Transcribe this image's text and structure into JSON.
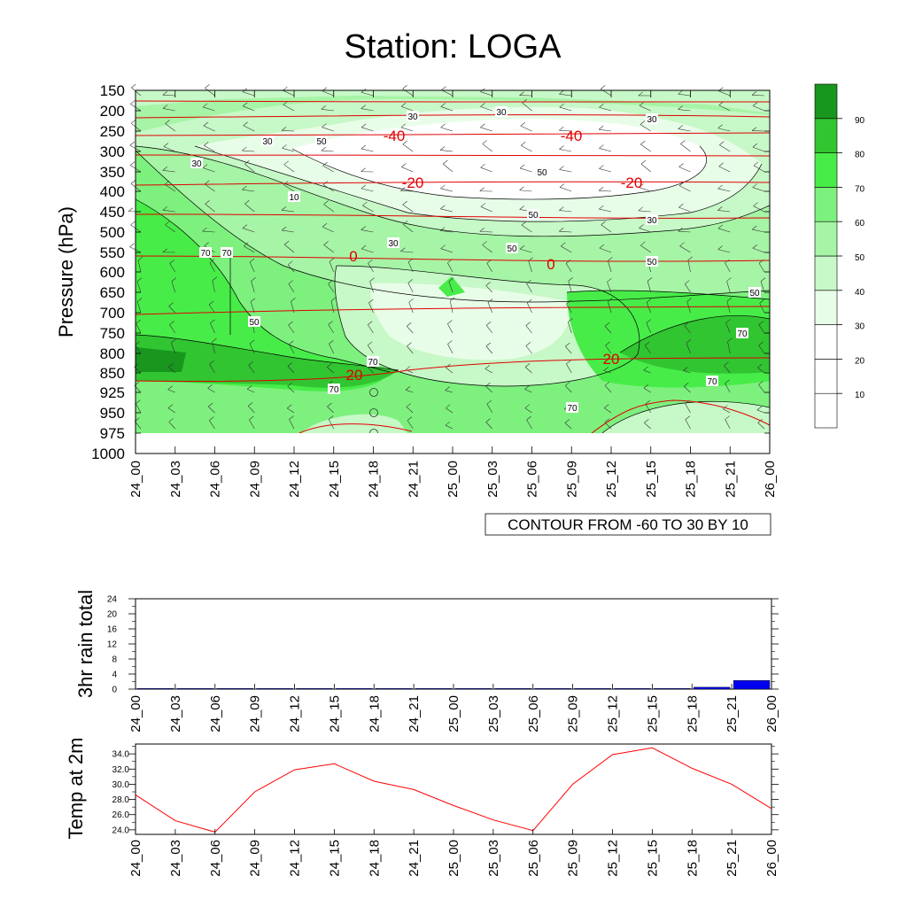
{
  "title": "Station: LOGA",
  "contour_info": "CONTOUR FROM -60 TO 30 BY 10",
  "chart_data": [
    {
      "type": "heatmap",
      "ylabel": "Pressure (hPa)",
      "x_ticks": [
        "24_00",
        "24_03",
        "24_06",
        "24_09",
        "24_12",
        "24_15",
        "24_18",
        "24_21",
        "25_00",
        "25_03",
        "25_06",
        "25_09",
        "25_12",
        "25_15",
        "25_18",
        "25_21",
        "26_00"
      ],
      "y_ticks": [
        "150",
        "200",
        "250",
        "300",
        "350",
        "400",
        "450",
        "500",
        "550",
        "600",
        "650",
        "700",
        "750",
        "800",
        "850",
        "925",
        "950",
        "975",
        "1000"
      ],
      "colorbar_labels": [
        "10",
        "20",
        "30",
        "40",
        "50",
        "60",
        "70",
        "80",
        "90"
      ],
      "colorbar_colors": [
        "#ffffff",
        "#ffffff",
        "#ffffff",
        "#e8fde8",
        "#c7f8c7",
        "#a6f4a6",
        "#7ef07e",
        "#48ec48",
        "#31c531",
        "#18961e"
      ],
      "humidity_contour_labels": [
        "30",
        "30",
        "30",
        "30",
        "50",
        "30",
        "50",
        "10",
        "50",
        "30",
        "30",
        "50",
        "70",
        "50",
        "50",
        "50",
        "70",
        "70",
        "70",
        "70",
        "70",
        "70"
      ],
      "temperature_contour_labels": [
        "-40",
        "-40",
        "-20",
        "-20",
        "0",
        "0",
        "20",
        "20"
      ]
    },
    {
      "type": "bar",
      "ylabel": "3hr rain total",
      "x_ticks": [
        "24_00",
        "24_03",
        "24_06",
        "24_09",
        "24_12",
        "24_15",
        "24_18",
        "24_21",
        "25_00",
        "25_03",
        "25_06",
        "25_09",
        "25_12",
        "25_15",
        "25_18",
        "25_21",
        "26_00"
      ],
      "y_ticks": [
        "0",
        "4",
        "8",
        "12",
        "16",
        "20",
        "24"
      ],
      "ylim": [
        0,
        24
      ],
      "values": [
        0,
        0,
        0,
        0,
        0,
        0.2,
        0,
        0,
        0,
        0,
        0,
        0,
        0,
        0,
        0.5,
        2.3
      ],
      "color": "#0000ee"
    },
    {
      "type": "line",
      "ylabel": "Temp at 2m",
      "x_ticks": [
        "24_00",
        "24_03",
        "24_06",
        "24_09",
        "24_12",
        "24_15",
        "24_18",
        "24_21",
        "25_00",
        "25_03",
        "25_06",
        "25_09",
        "25_12",
        "25_15",
        "25_18",
        "25_21",
        "26_00"
      ],
      "y_ticks": [
        "24.0",
        "26.0",
        "28.0",
        "30.0",
        "32.0",
        "34.0"
      ],
      "ylim": [
        23.4,
        35.3
      ],
      "values": [
        28.6,
        25.2,
        23.7,
        29.0,
        31.9,
        32.7,
        30.4,
        29.3,
        27.2,
        25.3,
        23.9,
        30.0,
        33.9,
        34.8,
        32.1,
        30.0,
        26.8
      ],
      "color": "#ff0000"
    }
  ]
}
